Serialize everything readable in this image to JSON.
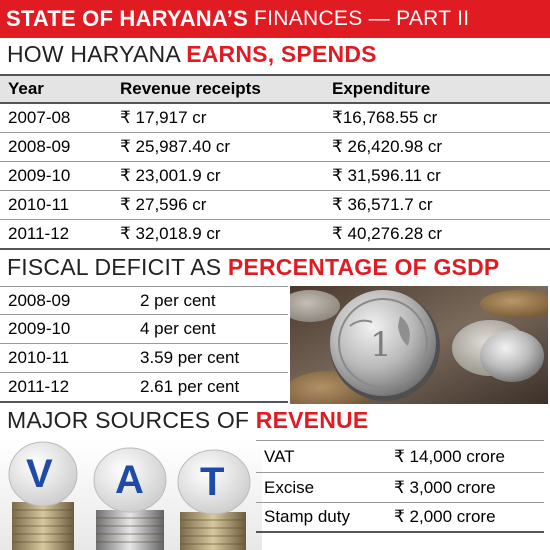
{
  "banner": {
    "bold": "STATE OF HARYANA’S",
    "rest": "FINANCES — PART II"
  },
  "section1": {
    "title_plain": "HOW HARYANA",
    "title_highlight": "EARNS, SPENDS",
    "headers": [
      "Year",
      "Revenue receipts",
      "Expenditure"
    ],
    "rows": [
      {
        "year": "2007-08",
        "revenue": "₹ 17,917 cr",
        "expenditure": "₹16,768.55 cr"
      },
      {
        "year": "2008-09",
        "revenue": "₹ 25,987.40 cr",
        "expenditure": "₹ 26,420.98 cr"
      },
      {
        "year": "2009-10",
        "revenue": "₹ 23,001.9 cr",
        "expenditure": "₹ 31,596.11 cr"
      },
      {
        "year": "2010-11",
        "revenue": "₹ 27,596 cr",
        "expenditure": "₹ 36,571.7 cr"
      },
      {
        "year": "2011-12",
        "revenue": "₹ 32,018.9 cr",
        "expenditure": "₹ 40,276.28 cr"
      }
    ]
  },
  "section2": {
    "title_plain": "FISCAL DEFICIT AS",
    "title_highlight": "PERCENTAGE OF GSDP",
    "rows": [
      {
        "year": "2008-09",
        "value": "2 per cent"
      },
      {
        "year": "2009-10",
        "value": "4 per cent"
      },
      {
        "year": "2010-11",
        "value": "3.59 per cent"
      },
      {
        "year": "2011-12",
        "value": "2.61 per cent"
      }
    ]
  },
  "section3": {
    "title_plain": "MAJOR SOURCES OF",
    "title_highlight": "REVENUE",
    "vat_letters": [
      "V",
      "A",
      "T"
    ],
    "rows": [
      {
        "source": "VAT",
        "amount": "₹ 14,000 crore"
      },
      {
        "source": "Excise",
        "amount": "₹ 3,000 crore"
      },
      {
        "source": "Stamp duty",
        "amount": "₹ 2,000 crore"
      }
    ]
  },
  "colors": {
    "accent_red": "#e11b22",
    "header_grey": "#e4e4e4",
    "rule_grey": "#9a9a9a",
    "vat_blue": "#1f4aa8"
  },
  "images": {
    "coins": "coins-photo",
    "vat": "vat-coin-stacks"
  }
}
